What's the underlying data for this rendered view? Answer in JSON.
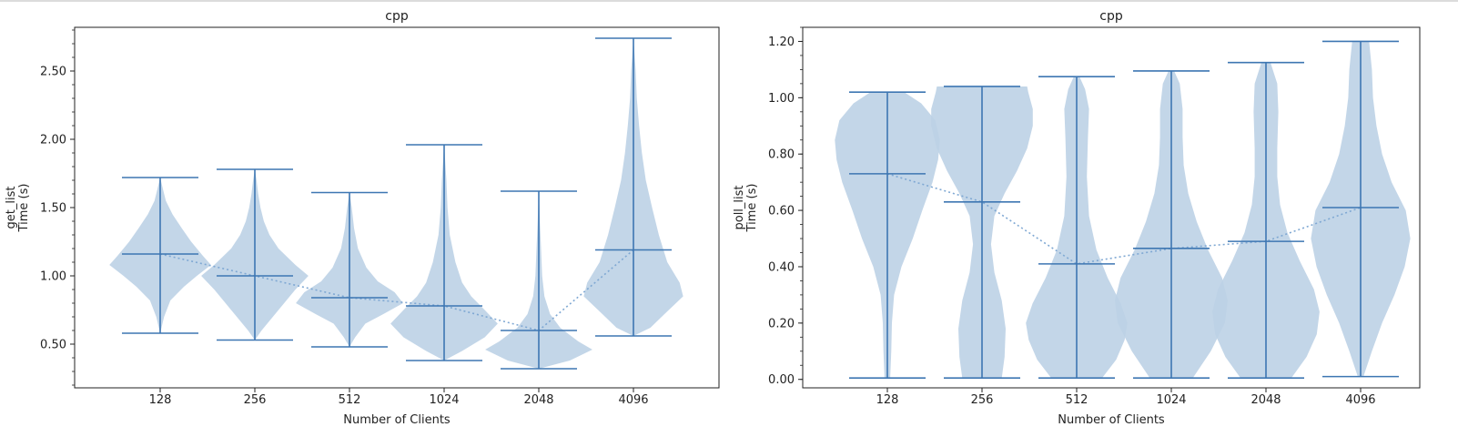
{
  "colors": {
    "violin_fill": "#bcd1e6",
    "line": "#3d76b2",
    "mean_line": "#7fa8d3",
    "axis": "#222222"
  },
  "chart_data": [
    {
      "type": "violin",
      "title": "cpp",
      "xlabel": "Number of Clients",
      "ylabel": "get_list\nTime (s)",
      "ylabel_lines": [
        "get_list",
        "Time (s)"
      ],
      "categories": [
        "128",
        "256",
        "512",
        "1024",
        "2048",
        "4096"
      ],
      "ylim": [
        0.18,
        2.82
      ],
      "yticks": [
        0.5,
        1.0,
        1.5,
        2.0,
        2.5
      ],
      "ytick_labels": [
        "0.50",
        "1.00",
        "1.50",
        "2.00",
        "2.50"
      ],
      "yminor_step": 0.1,
      "min": [
        0.58,
        0.53,
        0.48,
        0.38,
        0.32,
        0.56
      ],
      "max": [
        1.72,
        1.78,
        1.61,
        1.96,
        1.62,
        2.74
      ],
      "median": [
        1.16,
        1.0,
        0.84,
        0.78,
        0.6,
        1.19
      ],
      "trend": [
        1.16,
        1.0,
        0.84,
        0.78,
        0.6,
        1.19
      ],
      "density": [
        [
          [
            0.58,
            0.0
          ],
          [
            0.7,
            0.07
          ],
          [
            0.82,
            0.18
          ],
          [
            0.92,
            0.42
          ],
          [
            1.0,
            0.65
          ],
          [
            1.08,
            0.9
          ],
          [
            1.15,
            0.75
          ],
          [
            1.25,
            0.55
          ],
          [
            1.35,
            0.38
          ],
          [
            1.45,
            0.22
          ],
          [
            1.55,
            0.1
          ],
          [
            1.65,
            0.04
          ],
          [
            1.72,
            0.0
          ]
        ],
        [
          [
            0.53,
            0.0
          ],
          [
            0.6,
            0.12
          ],
          [
            0.7,
            0.32
          ],
          [
            0.8,
            0.52
          ],
          [
            0.9,
            0.72
          ],
          [
            1.0,
            0.95
          ],
          [
            1.08,
            0.72
          ],
          [
            1.2,
            0.42
          ],
          [
            1.3,
            0.26
          ],
          [
            1.4,
            0.16
          ],
          [
            1.5,
            0.1
          ],
          [
            1.6,
            0.06
          ],
          [
            1.7,
            0.03
          ],
          [
            1.78,
            0.0
          ]
        ],
        [
          [
            0.48,
            0.0
          ],
          [
            0.55,
            0.1
          ],
          [
            0.65,
            0.28
          ],
          [
            0.72,
            0.6
          ],
          [
            0.8,
            0.95
          ],
          [
            0.88,
            0.8
          ],
          [
            0.96,
            0.5
          ],
          [
            1.06,
            0.3
          ],
          [
            1.2,
            0.15
          ],
          [
            1.35,
            0.08
          ],
          [
            1.5,
            0.04
          ],
          [
            1.61,
            0.0
          ]
        ],
        [
          [
            0.38,
            0.0
          ],
          [
            0.45,
            0.32
          ],
          [
            0.55,
            0.72
          ],
          [
            0.65,
            0.95
          ],
          [
            0.75,
            0.72
          ],
          [
            0.85,
            0.48
          ],
          [
            0.95,
            0.32
          ],
          [
            1.1,
            0.2
          ],
          [
            1.3,
            0.1
          ],
          [
            1.5,
            0.06
          ],
          [
            1.7,
            0.04
          ],
          [
            1.96,
            0.0
          ]
        ],
        [
          [
            0.32,
            0.0
          ],
          [
            0.38,
            0.55
          ],
          [
            0.46,
            0.95
          ],
          [
            0.52,
            0.7
          ],
          [
            0.62,
            0.38
          ],
          [
            0.72,
            0.2
          ],
          [
            0.85,
            0.1
          ],
          [
            1.0,
            0.06
          ],
          [
            1.2,
            0.04
          ],
          [
            1.4,
            0.02
          ],
          [
            1.62,
            0.0
          ]
        ],
        [
          [
            0.56,
            0.0
          ],
          [
            0.62,
            0.3
          ],
          [
            0.72,
            0.55
          ],
          [
            0.85,
            0.88
          ],
          [
            0.95,
            0.82
          ],
          [
            1.1,
            0.6
          ],
          [
            1.3,
            0.45
          ],
          [
            1.5,
            0.33
          ],
          [
            1.7,
            0.22
          ],
          [
            1.9,
            0.15
          ],
          [
            2.1,
            0.1
          ],
          [
            2.3,
            0.06
          ],
          [
            2.5,
            0.04
          ],
          [
            2.74,
            0.0
          ]
        ]
      ]
    },
    {
      "type": "violin",
      "title": "cpp",
      "xlabel": "Number of Clients",
      "ylabel": "poll_list\nTime (s)",
      "ylabel_lines": [
        "poll_list",
        "Time (s)"
      ],
      "categories": [
        "128",
        "256",
        "512",
        "1024",
        "2048",
        "4096"
      ],
      "ylim": [
        -0.03,
        1.25
      ],
      "yticks": [
        0.0,
        0.2,
        0.4,
        0.6,
        0.8,
        1.0,
        1.2
      ],
      "ytick_labels": [
        "0.00",
        "0.20",
        "0.40",
        "0.60",
        "0.80",
        "1.00",
        "1.20"
      ],
      "yminor_step": 0.05,
      "min": [
        0.005,
        0.005,
        0.005,
        0.005,
        0.005,
        0.01
      ],
      "max": [
        1.02,
        1.04,
        1.075,
        1.095,
        1.125,
        1.2
      ],
      "median": [
        0.73,
        0.63,
        0.41,
        0.465,
        0.49,
        0.61
      ],
      "trend": [
        0.73,
        0.63,
        0.41,
        0.465,
        0.49,
        0.61
      ],
      "density": [
        [
          [
            0.005,
            0.05
          ],
          [
            0.1,
            0.07
          ],
          [
            0.2,
            0.08
          ],
          [
            0.3,
            0.12
          ],
          [
            0.4,
            0.25
          ],
          [
            0.5,
            0.45
          ],
          [
            0.6,
            0.62
          ],
          [
            0.7,
            0.8
          ],
          [
            0.78,
            0.9
          ],
          [
            0.85,
            0.93
          ],
          [
            0.92,
            0.85
          ],
          [
            0.98,
            0.6
          ],
          [
            1.02,
            0.3
          ]
        ],
        [
          [
            0.005,
            0.35
          ],
          [
            0.08,
            0.4
          ],
          [
            0.18,
            0.42
          ],
          [
            0.28,
            0.35
          ],
          [
            0.38,
            0.22
          ],
          [
            0.48,
            0.16
          ],
          [
            0.58,
            0.22
          ],
          [
            0.66,
            0.4
          ],
          [
            0.74,
            0.62
          ],
          [
            0.82,
            0.8
          ],
          [
            0.9,
            0.9
          ],
          [
            0.96,
            0.9
          ],
          [
            1.02,
            0.82
          ],
          [
            1.04,
            0.8
          ]
        ],
        [
          [
            0.005,
            0.45
          ],
          [
            0.07,
            0.7
          ],
          [
            0.14,
            0.85
          ],
          [
            0.2,
            0.9
          ],
          [
            0.27,
            0.78
          ],
          [
            0.36,
            0.55
          ],
          [
            0.46,
            0.35
          ],
          [
            0.58,
            0.22
          ],
          [
            0.72,
            0.18
          ],
          [
            0.86,
            0.2
          ],
          [
            0.96,
            0.22
          ],
          [
            1.03,
            0.15
          ],
          [
            1.075,
            0.05
          ]
        ],
        [
          [
            0.005,
            0.38
          ],
          [
            0.1,
            0.7
          ],
          [
            0.2,
            0.95
          ],
          [
            0.28,
            1.0
          ],
          [
            0.36,
            0.9
          ],
          [
            0.46,
            0.65
          ],
          [
            0.56,
            0.45
          ],
          [
            0.66,
            0.3
          ],
          [
            0.76,
            0.22
          ],
          [
            0.86,
            0.2
          ],
          [
            0.96,
            0.2
          ],
          [
            1.05,
            0.15
          ],
          [
            1.095,
            0.05
          ]
        ],
        [
          [
            0.005,
            0.45
          ],
          [
            0.08,
            0.72
          ],
          [
            0.16,
            0.9
          ],
          [
            0.24,
            0.95
          ],
          [
            0.32,
            0.85
          ],
          [
            0.42,
            0.6
          ],
          [
            0.52,
            0.38
          ],
          [
            0.62,
            0.25
          ],
          [
            0.72,
            0.2
          ],
          [
            0.82,
            0.2
          ],
          [
            0.95,
            0.22
          ],
          [
            1.05,
            0.2
          ],
          [
            1.125,
            0.08
          ]
        ],
        [
          [
            0.01,
            0.05
          ],
          [
            0.1,
            0.2
          ],
          [
            0.2,
            0.38
          ],
          [
            0.3,
            0.6
          ],
          [
            0.4,
            0.78
          ],
          [
            0.5,
            0.88
          ],
          [
            0.6,
            0.8
          ],
          [
            0.7,
            0.55
          ],
          [
            0.8,
            0.38
          ],
          [
            0.9,
            0.28
          ],
          [
            1.0,
            0.22
          ],
          [
            1.1,
            0.2
          ],
          [
            1.2,
            0.15
          ]
        ]
      ]
    }
  ]
}
